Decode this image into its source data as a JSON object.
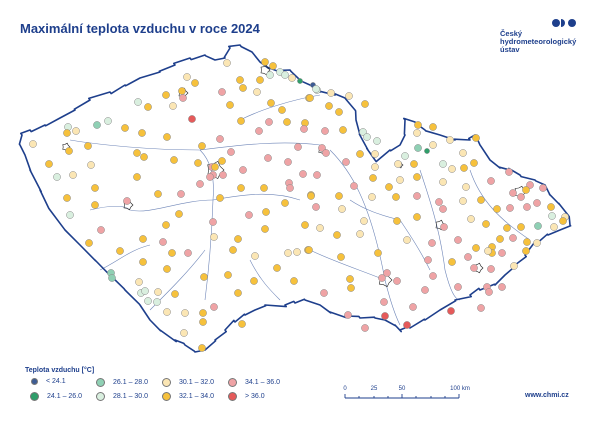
{
  "title": "Maximální teplota vzduchu v roce 2024",
  "logo": {
    "line1": "Český",
    "line2": "hydrometeorologický",
    "line3": "ústav",
    "color": "#1e3f8c"
  },
  "legend": {
    "title": "Teplota vzduchu [°C]",
    "items": [
      {
        "label": "< 24.1",
        "color": "#3d5c94"
      },
      {
        "label": "24.1 – 26.0",
        "color": "#2f9e6a"
      },
      {
        "label": "26.1 – 28.0",
        "color": "#8fd0b4"
      },
      {
        "label": "28.1 – 30.0",
        "color": "#d9efdf"
      },
      {
        "label": "30.1 – 32.0",
        "color": "#fbe6b4"
      },
      {
        "label": "32.1 – 34.0",
        "color": "#f6c13c"
      },
      {
        "label": "34.1 – 36.0",
        "color": "#efa3a5"
      },
      {
        "label": "> 36.0",
        "color": "#e55a5a"
      }
    ]
  },
  "scale": {
    "labels": [
      "0",
      "25",
      "50",
      "100 km"
    ]
  },
  "url": "www.chmi.cz",
  "colors": {
    "border": "#1e3f8c",
    "rivers": "#6f86b8",
    "cities": "#222222"
  }
}
